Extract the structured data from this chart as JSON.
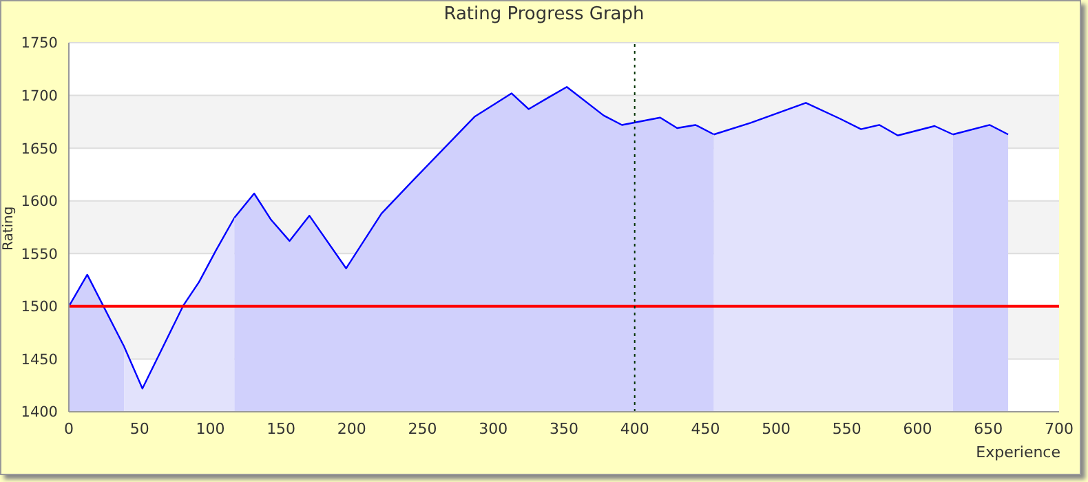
{
  "chart_data": {
    "type": "area",
    "title": "Rating Progress Graph",
    "xlabel": "Experience",
    "ylabel": "Rating",
    "color": "#0000ff",
    "series": [
      {
        "color": "#d0d0fc",
        "x": [
          0,
          13,
          39
        ],
        "values": [
          1500,
          1530,
          1462
        ]
      },
      {
        "color": "#e2e2fc",
        "x": [
          39,
          52,
          81,
          92,
          104,
          117
        ],
        "values": [
          1462,
          1422,
          1501,
          1523,
          1553,
          1584
        ]
      },
      {
        "color": "#d0d0fc",
        "x": [
          117,
          131,
          143,
          156,
          170,
          196,
          221,
          243,
          287,
          313,
          325,
          339,
          352,
          378,
          391,
          418,
          430,
          443,
          456
        ],
        "values": [
          1584,
          1607,
          1582,
          1562,
          1586,
          1536,
          1588,
          1619,
          1680,
          1702,
          1687,
          1698,
          1708,
          1681,
          1672,
          1679,
          1669,
          1672,
          1663
        ]
      },
      {
        "color": "#e2e2fc",
        "x": [
          456,
          482,
          521,
          545,
          560,
          573,
          586,
          612,
          625
        ],
        "values": [
          1663,
          1674,
          1693,
          1678,
          1668,
          1672,
          1662,
          1671,
          1663
        ]
      },
      {
        "color": "#d0d0fc",
        "x": [
          625,
          651,
          664
        ],
        "values": [
          1663,
          1672,
          1663
        ]
      }
    ],
    "xlim": [
      0,
      700
    ],
    "xticks": [
      0,
      50,
      100,
      150,
      200,
      250,
      300,
      350,
      400,
      450,
      500,
      550,
      600,
      650,
      700
    ],
    "ylim": [
      1400,
      1750
    ],
    "yticks": [
      1400,
      1450,
      1500,
      1550,
      1600,
      1650,
      1700,
      1750
    ],
    "grid": "y",
    "ref_lines": [
      {
        "axis": "y",
        "value": 1500,
        "color": "#ff0000",
        "line_style": "solid"
      },
      {
        "axis": "x",
        "value": 400,
        "color": "#003300",
        "line_style": "dotted"
      }
    ]
  }
}
